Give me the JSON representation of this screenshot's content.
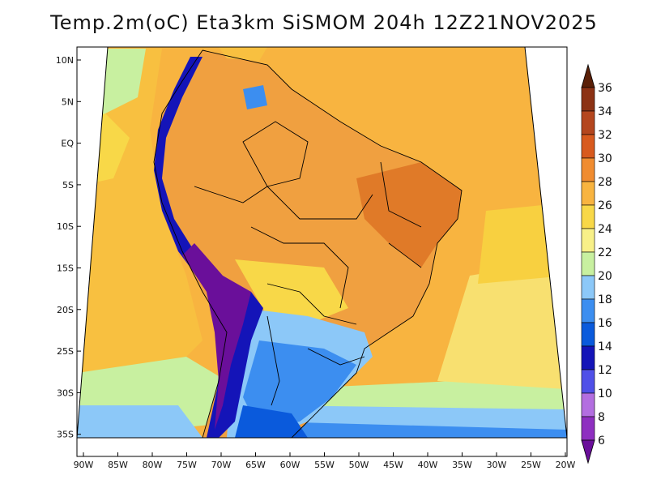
{
  "title": "Temp.2m(oC) Eta3km SiSMOM 204h 12Z21NOV2025",
  "map": {
    "lon_labels": [
      "90W",
      "85W",
      "80W",
      "75W",
      "70W",
      "65W",
      "60W",
      "55W",
      "50W",
      "45W",
      "40W",
      "35W",
      "30W",
      "25W",
      "20W"
    ],
    "lat_labels": [
      "10N",
      "5N",
      "EQ",
      "5S",
      "10S",
      "15S",
      "20S",
      "25S",
      "30S",
      "35S"
    ]
  },
  "colorbar": {
    "labels": [
      "6",
      "8",
      "10",
      "12",
      "14",
      "16",
      "18",
      "20",
      "22",
      "24",
      "26",
      "28",
      "30",
      "32",
      "34",
      "36"
    ],
    "colors": [
      "#6a0f9a",
      "#8e2fc0",
      "#b36ee0",
      "#5050e8",
      "#1414b8",
      "#0a5adc",
      "#3c8ef0",
      "#8cc8f8",
      "#c8f0a0",
      "#f8f088",
      "#f8d848",
      "#f8b440",
      "#f08c30",
      "#d85a1e",
      "#b4461e",
      "#8c3214",
      "#5a2008"
    ]
  },
  "regions": {
    "ocean_warm": "#f8b440",
    "ocean_hot": "#f8a030",
    "ocean_mild": "#f8d848",
    "land_hot": "#f08c30",
    "land_cool": "#8cc8f8",
    "andes_cold": "#6a0f9a",
    "south_ocean": "#3c8ef0"
  }
}
